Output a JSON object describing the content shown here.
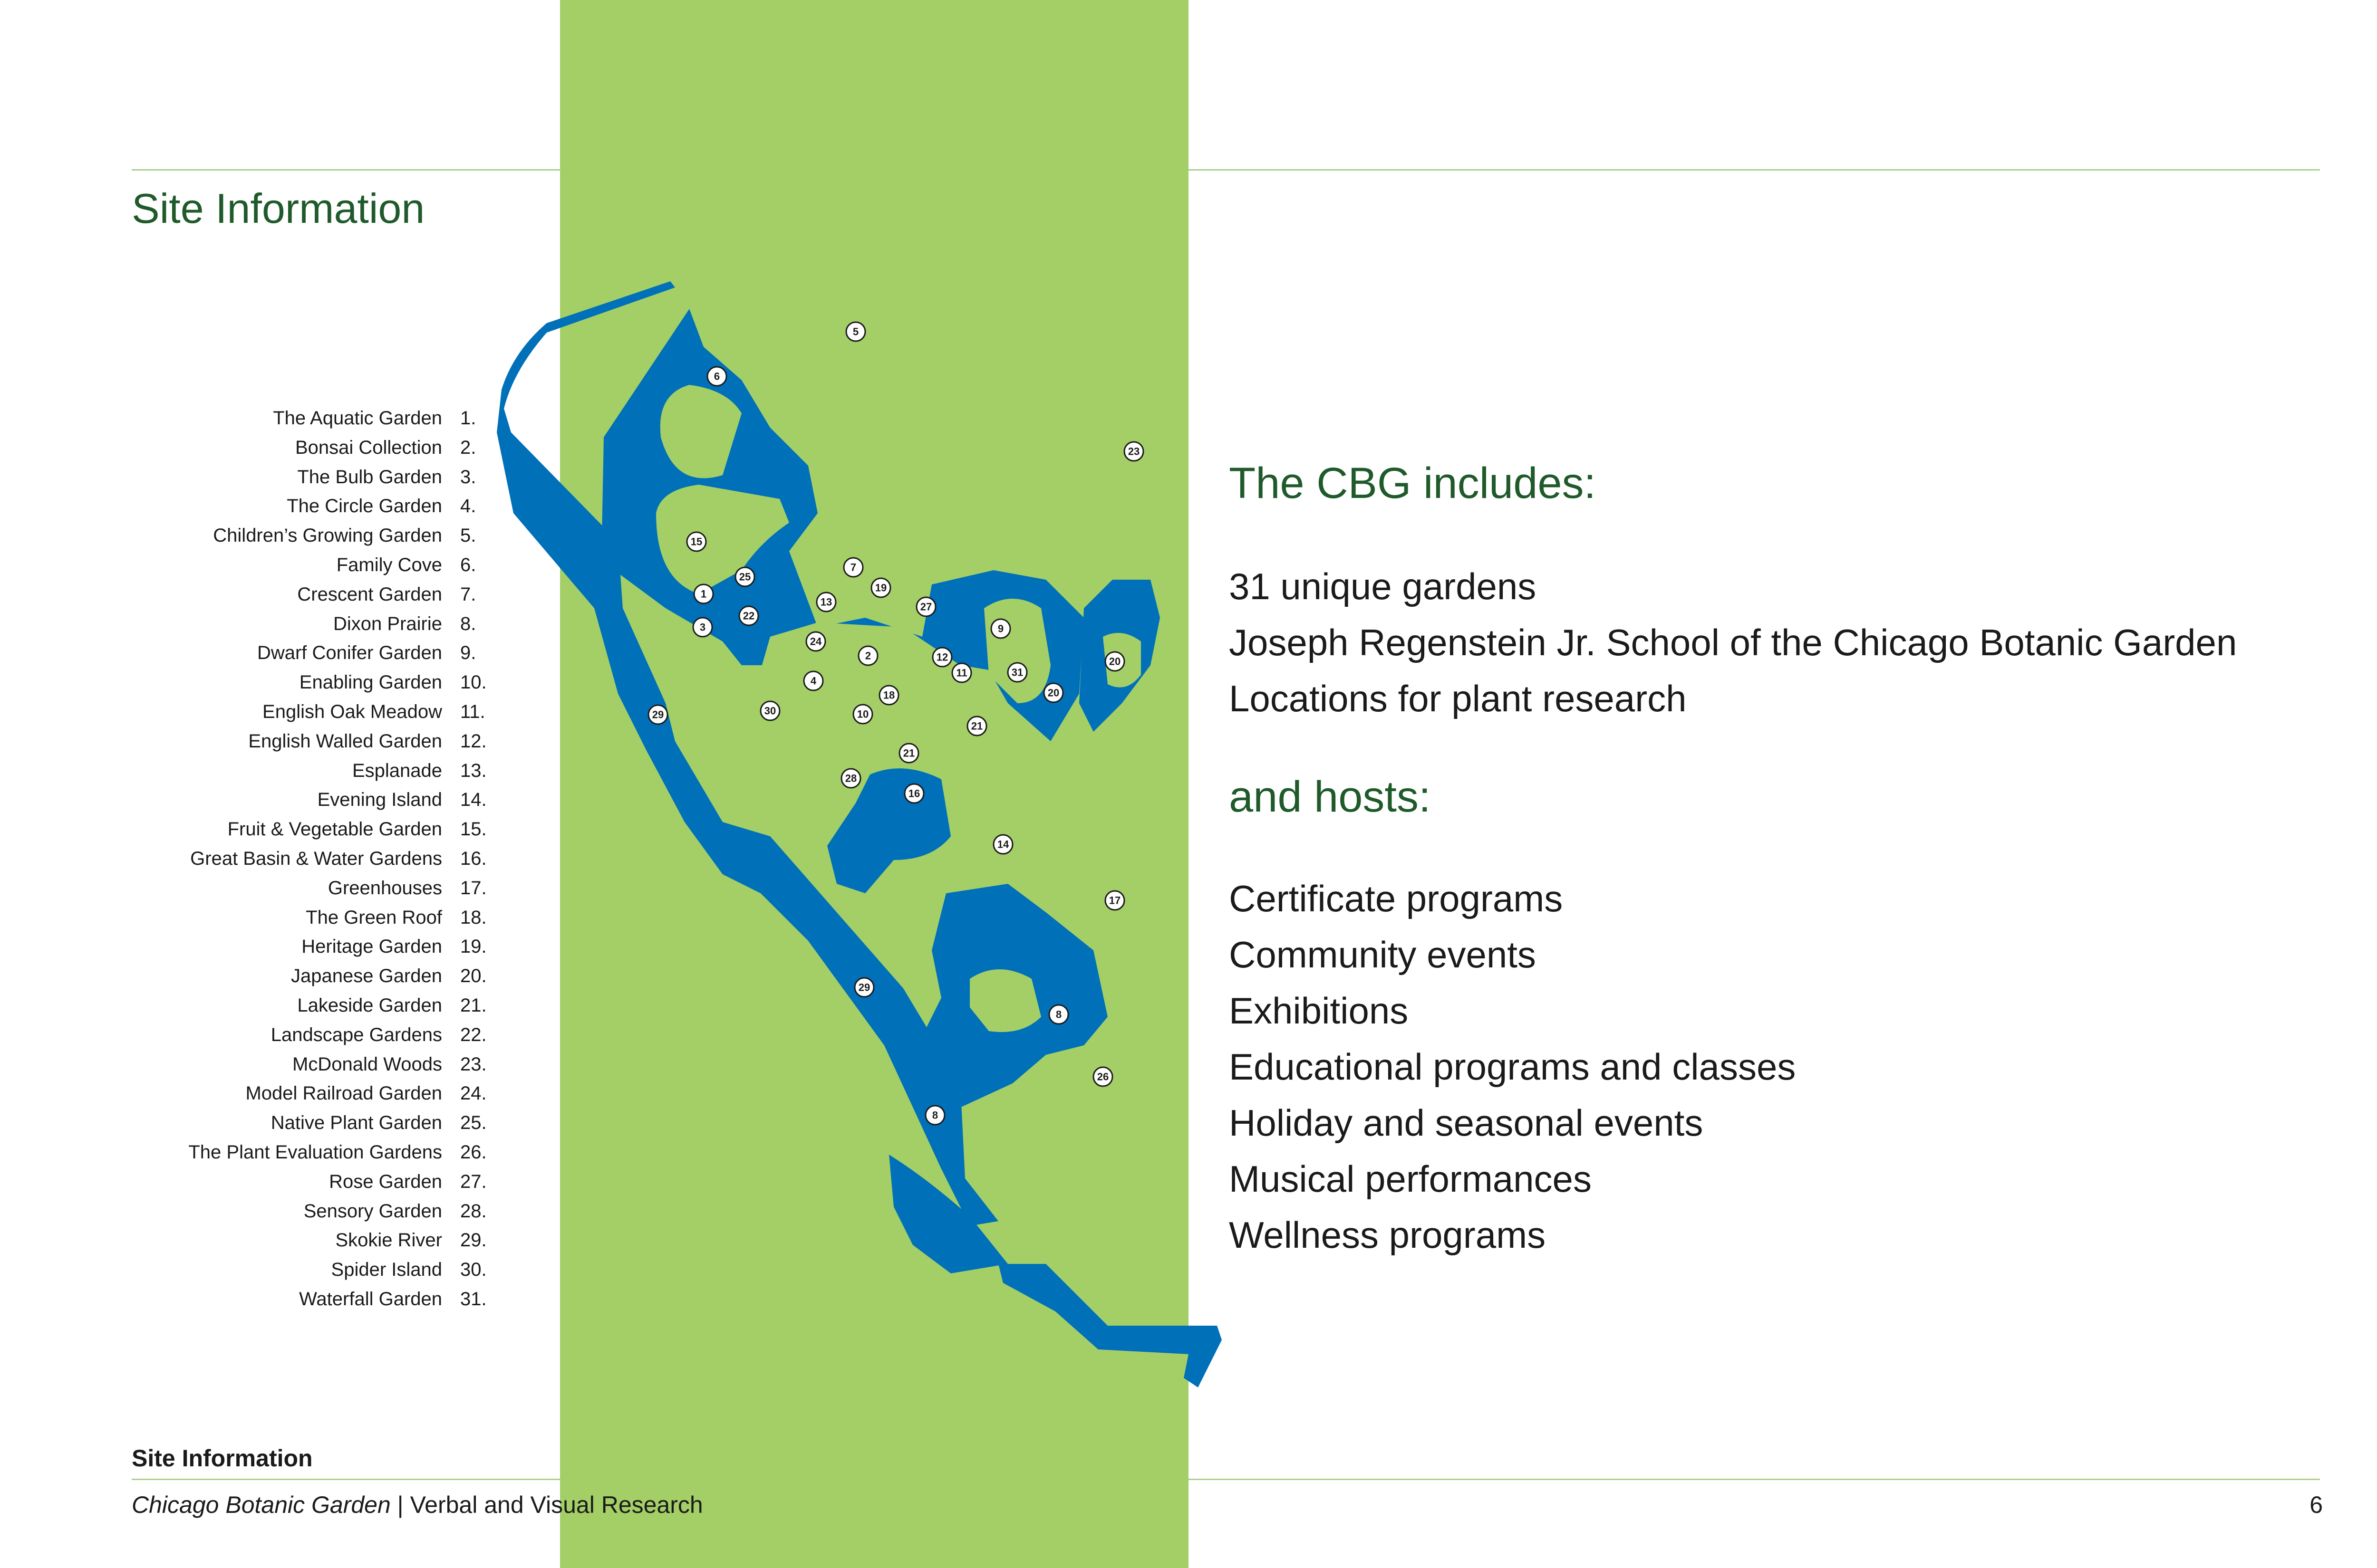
{
  "header": {
    "title": "Site Information"
  },
  "legend": [
    {
      "name": "The Aquatic Garden",
      "num": "1."
    },
    {
      "name": "Bonsai Collection",
      "num": "2."
    },
    {
      "name": "The Bulb Garden",
      "num": "3."
    },
    {
      "name": "The Circle Garden",
      "num": "4."
    },
    {
      "name": "Children’s Growing Garden",
      "num": "5."
    },
    {
      "name": "Family Cove",
      "num": "6."
    },
    {
      "name": "Crescent Garden",
      "num": "7."
    },
    {
      "name": "Dixon Prairie",
      "num": "8."
    },
    {
      "name": "Dwarf Conifer Garden",
      "num": "9."
    },
    {
      "name": "Enabling Garden",
      "num": "10."
    },
    {
      "name": "English Oak Meadow",
      "num": "11."
    },
    {
      "name": "English Walled Garden",
      "num": "12."
    },
    {
      "name": "Esplanade",
      "num": "13."
    },
    {
      "name": "Evening Island",
      "num": "14."
    },
    {
      "name": "Fruit & Vegetable Garden",
      "num": "15."
    },
    {
      "name": "Great Basin & Water Gardens",
      "num": "16."
    },
    {
      "name": "Greenhouses",
      "num": "17."
    },
    {
      "name": "The Green Roof",
      "num": "18."
    },
    {
      "name": "Heritage Garden",
      "num": "19."
    },
    {
      "name": "Japanese Garden",
      "num": "20."
    },
    {
      "name": "Lakeside Garden",
      "num": "21."
    },
    {
      "name": "Landscape Gardens",
      "num": "22."
    },
    {
      "name": "McDonald Woods",
      "num": "23."
    },
    {
      "name": "Model Railroad Garden",
      "num": "24."
    },
    {
      "name": "Native Plant Garden",
      "num": "25."
    },
    {
      "name": "The Plant Evaluation Gardens",
      "num": "26."
    },
    {
      "name": "Rose Garden",
      "num": "27."
    },
    {
      "name": "Sensory Garden",
      "num": "28."
    },
    {
      "name": "Skokie River",
      "num": "29."
    },
    {
      "name": "Spider Island",
      "num": "30."
    },
    {
      "name": "Waterfall Garden",
      "num": "31."
    }
  ],
  "map": {
    "markers": [
      "1",
      "2",
      "3",
      "4",
      "5",
      "6",
      "7",
      "8",
      "8",
      "9",
      "10",
      "11",
      "12",
      "13",
      "14",
      "15",
      "16",
      "17",
      "18",
      "19",
      "20",
      "20",
      "21",
      "21",
      "22",
      "23",
      "24",
      "25",
      "26",
      "27",
      "28",
      "29",
      "29",
      "30",
      "31"
    ],
    "colors": {
      "band": "#a4cf67",
      "water": "#0070b8",
      "land": "#a4cf67"
    }
  },
  "includes": {
    "heading": "The CBG includes:",
    "items": [
      "31 unique gardens",
      "Joseph Regenstein Jr. School of the Chicago Botanic Garden",
      "Locations for plant research"
    ]
  },
  "hosts": {
    "heading": "and hosts:",
    "items": [
      "Certificate programs",
      "Community events",
      "Exhibitions",
      "Educational programs and classes",
      "Holiday and seasonal events",
      "Musical performances",
      "Wellness programs"
    ]
  },
  "footer": {
    "section": "Site Information",
    "publication": "Chicago Botanic Garden",
    "separator": " | ",
    "subtitle": "Verbal and Visual Research",
    "page": "6"
  }
}
